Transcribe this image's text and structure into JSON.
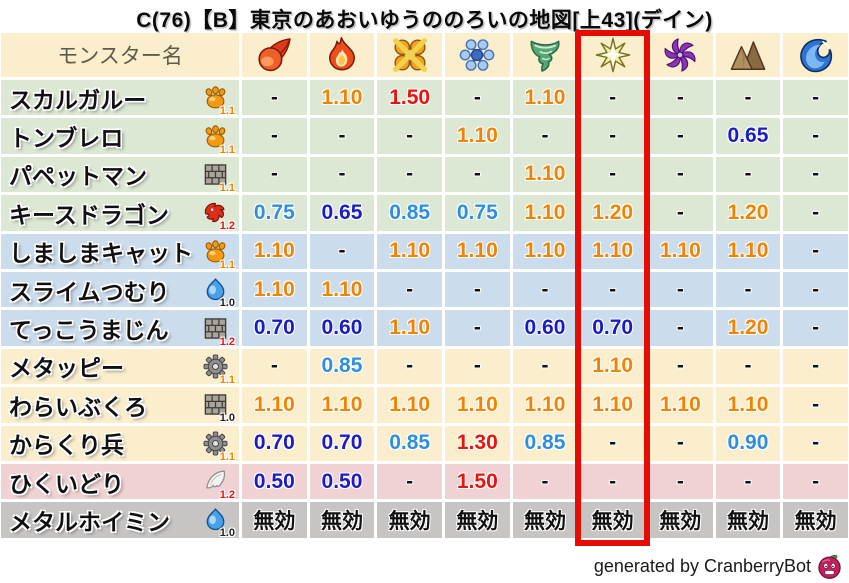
{
  "title": "C(76)【B】東京のあおいゆうののろいの地図[上43](デイン)",
  "chart_data": {
    "type": "table",
    "title": "C(76)【B】東京のあおいゆうののろいの地図[上43](デイン)",
    "name_column_header": "モンスター名",
    "element_columns": [
      {
        "icon": "fireball-icon"
      },
      {
        "icon": "flame-icon"
      },
      {
        "icon": "explosion-icon"
      },
      {
        "icon": "snowflake-icon"
      },
      {
        "icon": "tornado-icon"
      },
      {
        "icon": "light-star-icon"
      },
      {
        "icon": "dark-pinwheel-icon"
      },
      {
        "icon": "mountain-icon"
      },
      {
        "icon": "wave-icon"
      }
    ],
    "highlighted_column": 6,
    "rows": [
      {
        "name": "スカルガルー",
        "type_icon": "paw-icon",
        "multiplier": "1.1",
        "multiplier_color": "orange",
        "row_color": "green",
        "values": [
          "-",
          "1.10",
          "1.50",
          "-",
          "1.10",
          "-",
          "-",
          "-",
          "-"
        ],
        "value_colors": [
          "neutral",
          "orange",
          "red",
          "neutral",
          "orange",
          "neutral",
          "neutral",
          "neutral",
          "neutral"
        ]
      },
      {
        "name": "トンブレロ",
        "type_icon": "paw-icon",
        "multiplier": "1.1",
        "multiplier_color": "orange",
        "row_color": "green",
        "values": [
          "-",
          "-",
          "-",
          "1.10",
          "-",
          "-",
          "-",
          "0.65",
          "-"
        ],
        "value_colors": [
          "neutral",
          "neutral",
          "neutral",
          "orange",
          "neutral",
          "neutral",
          "neutral",
          "blue_dark",
          "neutral"
        ]
      },
      {
        "name": "パペットマン",
        "type_icon": "brick-icon",
        "multiplier": "1.1",
        "multiplier_color": "orange",
        "row_color": "green",
        "values": [
          "-",
          "-",
          "-",
          "-",
          "1.10",
          "-",
          "-",
          "-",
          "-"
        ],
        "value_colors": [
          "neutral",
          "neutral",
          "neutral",
          "neutral",
          "orange",
          "neutral",
          "neutral",
          "neutral",
          "neutral"
        ]
      },
      {
        "name": "キースドラゴン",
        "type_icon": "dragon-icon",
        "multiplier": "1.2",
        "multiplier_color": "red",
        "row_color": "green",
        "values": [
          "0.75",
          "0.65",
          "0.85",
          "0.75",
          "1.10",
          "1.20",
          "-",
          "1.20",
          "-"
        ],
        "value_colors": [
          "blue_light",
          "blue_dark",
          "blue_light",
          "blue_light",
          "orange",
          "orange",
          "neutral",
          "orange",
          "neutral"
        ]
      },
      {
        "name": "しましまキャット",
        "type_icon": "paw-icon",
        "multiplier": "1.1",
        "multiplier_color": "orange",
        "row_color": "blue",
        "values": [
          "1.10",
          "-",
          "1.10",
          "1.10",
          "1.10",
          "1.10",
          "1.10",
          "1.10",
          "-"
        ],
        "value_colors": [
          "orange",
          "neutral",
          "orange",
          "orange",
          "orange",
          "orange",
          "orange",
          "orange",
          "neutral"
        ]
      },
      {
        "name": "スライムつむり",
        "type_icon": "slime-icon",
        "multiplier": "1.0",
        "multiplier_color": "black",
        "row_color": "blue",
        "values": [
          "1.10",
          "1.10",
          "-",
          "-",
          "-",
          "-",
          "-",
          "-",
          "-"
        ],
        "value_colors": [
          "orange",
          "orange",
          "neutral",
          "neutral",
          "neutral",
          "neutral",
          "neutral",
          "neutral",
          "neutral"
        ]
      },
      {
        "name": "てっこうまじん",
        "type_icon": "brick-icon",
        "multiplier": "1.2",
        "multiplier_color": "red",
        "row_color": "blue",
        "values": [
          "0.70",
          "0.60",
          "1.10",
          "-",
          "0.60",
          "0.70",
          "-",
          "1.20",
          "-"
        ],
        "value_colors": [
          "blue_dark",
          "blue_dark",
          "orange",
          "neutral",
          "blue_dark",
          "blue_dark",
          "neutral",
          "orange",
          "neutral"
        ]
      },
      {
        "name": "メタッピー",
        "type_icon": "gear-icon",
        "multiplier": "1.1",
        "multiplier_color": "orange",
        "row_color": "cream",
        "values": [
          "-",
          "0.85",
          "-",
          "-",
          "-",
          "1.10",
          "-",
          "-",
          "-"
        ],
        "value_colors": [
          "neutral",
          "blue_light",
          "neutral",
          "neutral",
          "neutral",
          "orange",
          "neutral",
          "neutral",
          "neutral"
        ]
      },
      {
        "name": "わらいぶくろ",
        "type_icon": "brick-icon",
        "multiplier": "1.0",
        "multiplier_color": "black",
        "row_color": "cream",
        "values": [
          "1.10",
          "1.10",
          "1.10",
          "1.10",
          "1.10",
          "1.10",
          "1.10",
          "1.10",
          "-"
        ],
        "value_colors": [
          "orange",
          "orange",
          "orange",
          "orange",
          "orange",
          "orange",
          "orange",
          "orange",
          "neutral"
        ]
      },
      {
        "name": "からくり兵",
        "type_icon": "gear-icon",
        "multiplier": "1.1",
        "multiplier_color": "orange",
        "row_color": "cream",
        "values": [
          "0.70",
          "0.70",
          "0.85",
          "1.30",
          "0.85",
          "-",
          "-",
          "0.90",
          "-"
        ],
        "value_colors": [
          "blue_dark",
          "blue_dark",
          "blue_light",
          "red",
          "blue_light",
          "neutral",
          "neutral",
          "blue_light",
          "neutral"
        ]
      },
      {
        "name": "ひくいどり",
        "type_icon": "wing-icon",
        "multiplier": "1.2",
        "multiplier_color": "red",
        "row_color": "pink",
        "values": [
          "0.50",
          "0.50",
          "-",
          "1.50",
          "-",
          "-",
          "-",
          "-",
          "-"
        ],
        "value_colors": [
          "blue_dark",
          "blue_dark",
          "neutral",
          "red",
          "neutral",
          "neutral",
          "neutral",
          "neutral",
          "neutral"
        ]
      },
      {
        "name": "メタルホイミン",
        "type_icon": "slime-icon",
        "multiplier": "1.0",
        "multiplier_color": "black",
        "row_color": "gray",
        "values": [
          "無効",
          "無効",
          "無効",
          "無効",
          "無効",
          "無効",
          "無効",
          "無効",
          "無効"
        ],
        "value_colors": [
          "neutral",
          "neutral",
          "neutral",
          "neutral",
          "neutral",
          "neutral",
          "neutral",
          "neutral",
          "neutral"
        ]
      }
    ]
  },
  "footer": {
    "credit_text": "generated by CranberryBot",
    "icon": "cranberry-icon"
  },
  "palette": {
    "header_bg": "#faeecd",
    "row_green": "#dce8d3",
    "row_blue": "#cbdcec",
    "row_cream": "#faeecd",
    "row_pink": "#f0d2d5",
    "row_gray": "#c7c5c3",
    "value_orange": "#f08300",
    "value_red": "#e81410",
    "value_blue_light": "#2e8fe0",
    "value_blue_dark": "#1c1cc4",
    "value_neutral": "#111111",
    "multiplier_black": "#222222",
    "highlight_red": "#e60c04"
  }
}
